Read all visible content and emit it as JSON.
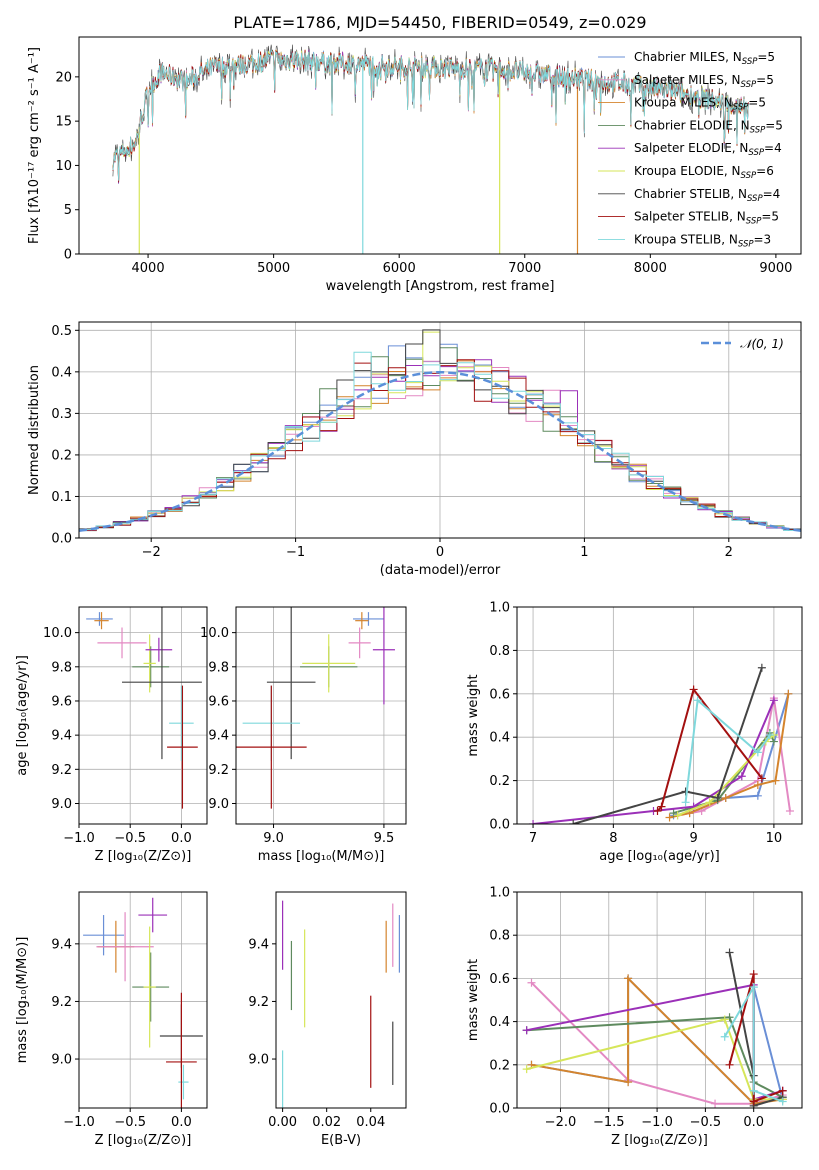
{
  "chart_data": [
    {
      "id": "spectrum",
      "type": "line",
      "title": "PLATE=1786, MJD=54450, FIBERID=0549, z=0.029",
      "xlabel": "wavelength [Angstrom, rest frame]",
      "ylabel": "Flux [fλ10⁻¹⁷ erg cm⁻² s⁻¹ A⁻¹]",
      "xlim": [
        3450,
        9200
      ],
      "ylim": [
        0,
        24.5
      ],
      "xticks": [
        4000,
        5000,
        6000,
        7000,
        8000,
        9000
      ],
      "yticks": [
        0,
        5,
        10,
        15,
        20
      ],
      "grid": false,
      "legend_position": "top-right",
      "series": [
        {
          "name": "Chabrier MILES, N",
          "sub": "SSP",
          "tail": "=5",
          "color": "#6a8fd6"
        },
        {
          "name": "Salpeter MILES, N",
          "sub": "SSP",
          "tail": "=5",
          "color": "#e389c3"
        },
        {
          "name": "Kroupa MILES, N",
          "sub": "SSP",
          "tail": "=5",
          "color": "#d4842d"
        },
        {
          "name": "Chabrier ELODIE, N",
          "sub": "SSP",
          "tail": "=5",
          "color": "#5e8a5e"
        },
        {
          "name": "Salpeter ELODIE, N",
          "sub": "SSP",
          "tail": "=4",
          "color": "#9b30b8"
        },
        {
          "name": "Kroupa ELODIE, N",
          "sub": "SSP",
          "tail": "=6",
          "color": "#d6e65a"
        },
        {
          "name": "Chabrier STELIB, N",
          "sub": "SSP",
          "tail": "=4",
          "color": "#444444"
        },
        {
          "name": "Salpeter STELIB, N",
          "sub": "SSP",
          "tail": "=5",
          "color": "#a31010"
        },
        {
          "name": "Kroupa STELIB, N",
          "sub": "SSP",
          "tail": "=3",
          "color": "#7fd8dc"
        }
      ],
      "continuum": {
        "x": [
          3700,
          3800,
          3900,
          4000,
          4100,
          4300,
          4500,
          4800,
          5000,
          5300,
          5600,
          6000,
          6400,
          6800,
          7000,
          7300,
          7600,
          8000,
          8300,
          8600,
          8800
        ],
        "y": [
          10.5,
          11.5,
          12.5,
          18.5,
          20.5,
          19.5,
          21.0,
          21.5,
          22.0,
          21.8,
          21.5,
          21.2,
          21.0,
          20.8,
          20.5,
          20.0,
          19.5,
          18.8,
          18.0,
          17.0,
          16.5
        ]
      }
    },
    {
      "id": "residuals",
      "type": "line",
      "xlabel": "(data-model)/error",
      "ylabel": "Normed distribution",
      "xlim": [
        -2.5,
        2.5
      ],
      "ylim": [
        0,
        0.52
      ],
      "xticks": [
        -2,
        -1,
        0,
        1,
        2
      ],
      "yticks": [
        0.0,
        0.1,
        0.2,
        0.3,
        0.4,
        0.5
      ],
      "grid": true,
      "legend_position": "top-right",
      "legend": "𝒩(0, 1)",
      "gaussian": {
        "mu": 0,
        "sigma": 1,
        "color": "#5b8fd9"
      }
    },
    {
      "id": "age-vs-Z",
      "type": "scatter",
      "xlabel": "Z [log₁₀(Z/Z⊙)]",
      "ylabel": "age  [log₁₀(age/yr)]",
      "xlim": [
        -1.0,
        0.25
      ],
      "ylim": [
        8.88,
        10.15
      ],
      "xticks": [
        -1.0,
        -0.5,
        0.0
      ],
      "yticks": [
        9.0,
        9.2,
        9.4,
        9.6,
        9.8,
        10.0
      ],
      "grid": true,
      "points": [
        {
          "x": -0.8,
          "xerr": 0.13,
          "y": 10.08,
          "yerr": 0.04,
          "color": "#6a8fd6"
        },
        {
          "x": -0.78,
          "xerr": 0.07,
          "y": 10.07,
          "yerr": 0.05,
          "color": "#d4842d"
        },
        {
          "x": -0.58,
          "xerr": 0.24,
          "y": 9.94,
          "yerr": 0.09,
          "color": "#e389c3"
        },
        {
          "x": -0.3,
          "xerr": 0.18,
          "y": 9.8,
          "yerr": 0.12,
          "color": "#5e8a5e"
        },
        {
          "x": -0.31,
          "xerr": 0.06,
          "y": 9.82,
          "yerr": 0.17,
          "color": "#d6e65a"
        },
        {
          "x": -0.22,
          "xerr": 0.13,
          "y": 9.9,
          "yerr": 0.07,
          "color": "#9b30b8"
        },
        {
          "x": -0.19,
          "xerr": 0.39,
          "y": 9.71,
          "yerr": 0.45,
          "color": "#444444"
        },
        {
          "x": 0.0,
          "xerr": 0.12,
          "y": 9.47,
          "yerr": 0.22,
          "color": "#7fd8dc"
        },
        {
          "x": 0.01,
          "xerr": 0.15,
          "y": 9.33,
          "yerr": 0.36,
          "color": "#a31010"
        }
      ]
    },
    {
      "id": "age-vs-mass",
      "type": "scatter",
      "xlabel": "mass [log₁₀(M/M⊙)]",
      "ylabel": "",
      "xlim": [
        8.83,
        9.6
      ],
      "ylim": [
        8.88,
        10.15
      ],
      "xticks": [
        9.0,
        9.5
      ],
      "yticks": [
        9.0,
        9.2,
        9.4,
        9.6,
        9.8,
        10.0
      ],
      "grid": true,
      "points": [
        {
          "x": 9.43,
          "xerr": 0.07,
          "y": 10.08,
          "yerr": 0.04,
          "color": "#6a8fd6"
        },
        {
          "x": 9.4,
          "xerr": 0.03,
          "y": 10.07,
          "yerr": 0.05,
          "color": "#d4842d"
        },
        {
          "x": 9.39,
          "xerr": 0.05,
          "y": 9.94,
          "yerr": 0.09,
          "color": "#e389c3"
        },
        {
          "x": 9.25,
          "xerr": 0.13,
          "y": 9.8,
          "yerr": 0.12,
          "color": "#5e8a5e"
        },
        {
          "x": 9.25,
          "xerr": 0.12,
          "y": 9.82,
          "yerr": 0.17,
          "color": "#d6e65a"
        },
        {
          "x": 9.5,
          "xerr": 0.05,
          "y": 9.9,
          "yerr": 0.32,
          "color": "#9b30b8"
        },
        {
          "x": 9.08,
          "xerr": 0.11,
          "y": 9.71,
          "yerr": 0.45,
          "color": "#444444"
        },
        {
          "x": 8.99,
          "xerr": 0.13,
          "y": 9.47,
          "yerr": 0.22,
          "color": "#7fd8dc"
        },
        {
          "x": 8.99,
          "xerr": 0.16,
          "y": 9.33,
          "yerr": 0.36,
          "color": "#a31010"
        }
      ]
    },
    {
      "id": "weight-vs-age",
      "type": "line",
      "xlabel": "age  [log₁₀(age/yr)]",
      "ylabel": "mass weight",
      "xlim": [
        6.8,
        10.35
      ],
      "ylim": [
        0,
        1.0
      ],
      "xticks": [
        7,
        8,
        9,
        10
      ],
      "yticks": [
        0.0,
        0.2,
        0.4,
        0.6,
        0.8,
        1.0
      ],
      "grid": true,
      "series": [
        {
          "color": "#6a8fd6",
          "x": [
            8.75,
            8.95,
            9.4,
            9.8,
            10.18
          ],
          "y": [
            0.04,
            0.05,
            0.12,
            0.13,
            0.6
          ]
        },
        {
          "color": "#e389c3",
          "x": [
            8.8,
            9.1,
            9.8,
            10.0,
            10.2
          ],
          "y": [
            0.04,
            0.06,
            0.2,
            0.58,
            0.06
          ]
        },
        {
          "color": "#d4842d",
          "x": [
            8.7,
            8.95,
            9.4,
            9.8,
            10.02,
            10.18
          ],
          "y": [
            0.03,
            0.05,
            0.12,
            0.18,
            0.2,
            0.6
          ]
        },
        {
          "color": "#5e8a5e",
          "x": [
            8.75,
            9.3,
            9.95,
            10.0
          ],
          "y": [
            0.05,
            0.11,
            0.42,
            0.38
          ]
        },
        {
          "color": "#9b30b8",
          "x": [
            7.0,
            8.5,
            9.0,
            9.6,
            10.0
          ],
          "y": [
            0.0,
            0.06,
            0.08,
            0.22,
            0.57
          ]
        },
        {
          "color": "#d6e65a",
          "x": [
            8.8,
            9.2,
            9.9,
            10.0
          ],
          "y": [
            0.04,
            0.1,
            0.38,
            0.41
          ]
        },
        {
          "color": "#444444",
          "x": [
            7.5,
            8.9,
            9.3,
            9.85
          ],
          "y": [
            0.0,
            0.15,
            0.12,
            0.72
          ]
        },
        {
          "color": "#a31010",
          "x": [
            8.55,
            8.6,
            9.0,
            9.85
          ],
          "y": [
            0.06,
            0.08,
            0.62,
            0.21
          ]
        },
        {
          "color": "#7fd8dc",
          "x": [
            8.9,
            9.05,
            9.8,
            9.95
          ],
          "y": [
            0.1,
            0.57,
            0.33,
            0.41
          ]
        }
      ]
    },
    {
      "id": "mass-vs-Z",
      "type": "scatter",
      "xlabel": "Z [log₁₀(Z/Z⊙)]",
      "ylabel": "mass [log₁₀(M/M⊙)]",
      "xlim": [
        -1.0,
        0.25
      ],
      "ylim": [
        8.83,
        9.58
      ],
      "xticks": [
        -1.0,
        -0.5,
        0.0
      ],
      "yticks": [
        9.0,
        9.2,
        9.4
      ],
      "grid": true,
      "points": [
        {
          "x": -0.76,
          "xerr": 0.2,
          "y": 9.43,
          "yerr": 0.07,
          "color": "#6a8fd6"
        },
        {
          "x": -0.64,
          "xerr": 0.18,
          "y": 9.39,
          "yerr": 0.09,
          "color": "#d4842d"
        },
        {
          "x": -0.55,
          "xerr": 0.28,
          "y": 9.39,
          "yerr": 0.12,
          "color": "#e389c3"
        },
        {
          "x": -0.3,
          "xerr": 0.18,
          "y": 9.25,
          "yerr": 0.12,
          "color": "#5e8a5e"
        },
        {
          "x": -0.31,
          "xerr": 0.06,
          "y": 9.25,
          "yerr": 0.21,
          "color": "#d6e65a"
        },
        {
          "x": -0.28,
          "xerr": 0.14,
          "y": 9.5,
          "yerr": 0.06,
          "color": "#9b30b8"
        },
        {
          "x": 0.0,
          "xerr": 0.21,
          "y": 9.08,
          "yerr": 0.11,
          "color": "#444444"
        },
        {
          "x": 0.02,
          "xerr": 0.05,
          "y": 8.92,
          "yerr": 0.06,
          "color": "#7fd8dc"
        },
        {
          "x": 0.0,
          "xerr": 0.15,
          "y": 8.99,
          "yerr": 0.24,
          "color": "#a31010"
        }
      ]
    },
    {
      "id": "mass-vs-EBV",
      "type": "scatter",
      "xlabel": "E(B-V)",
      "ylabel": "",
      "xlim": [
        -0.003,
        0.056
      ],
      "ylim": [
        8.83,
        9.58
      ],
      "xticks": [
        0.0,
        0.02,
        0.04
      ],
      "yticks": [
        9.0,
        9.2,
        9.4
      ],
      "grid": false,
      "points": [
        {
          "x": 0.0,
          "y": 9.43,
          "yerr": 0.12,
          "color": "#9b30b8"
        },
        {
          "x": 0.0,
          "y": 8.93,
          "yerr": 0.1,
          "color": "#7fd8dc"
        },
        {
          "x": 0.004,
          "y": 9.29,
          "yerr": 0.12,
          "color": "#5e8a5e"
        },
        {
          "x": 0.01,
          "y": 9.28,
          "yerr": 0.17,
          "color": "#d6e65a"
        },
        {
          "x": 0.04,
          "y": 9.06,
          "yerr": 0.16,
          "color": "#a31010"
        },
        {
          "x": 0.047,
          "y": 9.39,
          "yerr": 0.09,
          "color": "#d4842d"
        },
        {
          "x": 0.05,
          "y": 9.43,
          "yerr": 0.11,
          "color": "#e389c3"
        },
        {
          "x": 0.05,
          "y": 9.02,
          "yerr": 0.11,
          "color": "#444444"
        },
        {
          "x": 0.053,
          "y": 9.4,
          "yerr": 0.1,
          "color": "#6a8fd6"
        }
      ]
    },
    {
      "id": "weight-vs-Z",
      "type": "line",
      "xlabel": "Z [log₁₀(Z/Z⊙)]",
      "ylabel": "mass weight",
      "xlim": [
        -2.45,
        0.5
      ],
      "ylim": [
        0,
        1.0
      ],
      "xticks": [
        -2.0,
        -1.5,
        -1.0,
        -0.5,
        0.0
      ],
      "yticks": [
        0.0,
        0.2,
        0.4,
        0.6,
        0.8,
        1.0
      ],
      "grid": true,
      "series": [
        {
          "color": "#6a8fd6",
          "x": [
            -2.3,
            -1.3,
            -1.3,
            0.0,
            0.0,
            0.3
          ],
          "y": [
            0.2,
            0.12,
            0.6,
            0.02,
            0.56,
            0.04
          ]
        },
        {
          "color": "#e389c3",
          "x": [
            -2.3,
            -1.3,
            -0.4,
            0.0,
            0.3
          ],
          "y": [
            0.58,
            0.13,
            0.02,
            0.02,
            0.06
          ]
        },
        {
          "color": "#d4842d",
          "x": [
            -2.3,
            -1.3,
            -1.3,
            0.0,
            0.3
          ],
          "y": [
            0.2,
            0.12,
            0.6,
            0.02,
            0.04
          ]
        },
        {
          "color": "#5e8a5e",
          "x": [
            -2.35,
            -0.25,
            0.0,
            0.3
          ],
          "y": [
            0.36,
            0.42,
            0.12,
            0.05
          ]
        },
        {
          "color": "#9b30b8",
          "x": [
            -2.35,
            0.0,
            0.0,
            0.3
          ],
          "y": [
            0.36,
            0.57,
            0.04,
            0.08
          ]
        },
        {
          "color": "#d6e65a",
          "x": [
            -2.35,
            -0.3,
            0.0,
            0.3
          ],
          "y": [
            0.18,
            0.41,
            0.04,
            0.04
          ]
        },
        {
          "color": "#444444",
          "x": [
            -0.25,
            0.0,
            0.0,
            0.3
          ],
          "y": [
            0.72,
            0.15,
            0.01,
            0.05
          ]
        },
        {
          "color": "#a31010",
          "x": [
            -0.25,
            0.0,
            0.0,
            0.3
          ],
          "y": [
            0.2,
            0.62,
            0.03,
            0.08
          ]
        },
        {
          "color": "#7fd8dc",
          "x": [
            -0.3,
            0.0,
            0.0,
            0.3
          ],
          "y": [
            0.33,
            0.56,
            0.08,
            0.03
          ]
        }
      ]
    }
  ]
}
